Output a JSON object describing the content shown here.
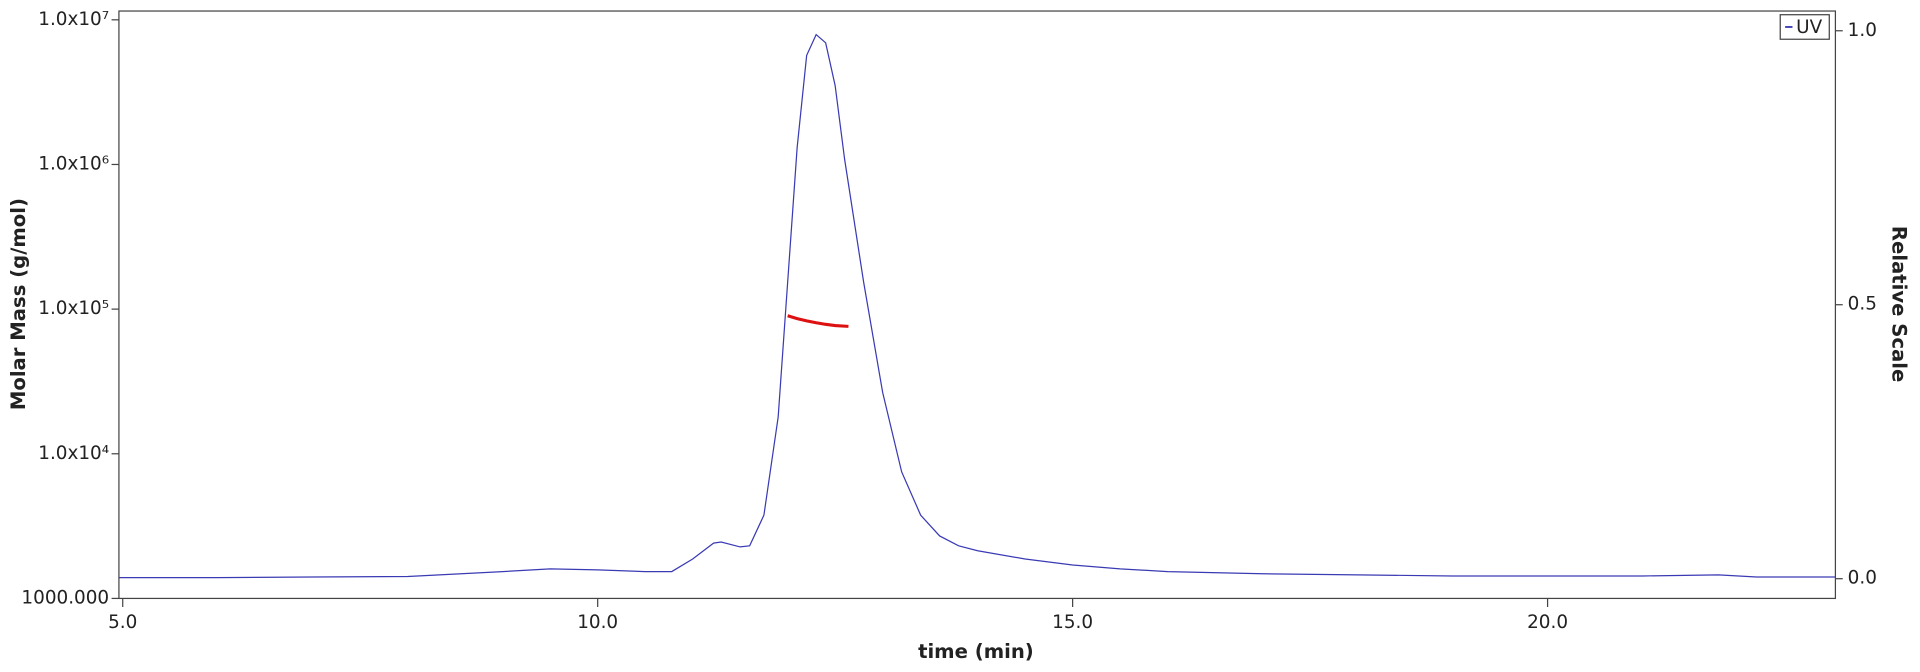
{
  "chart_data": {
    "type": "line",
    "xlabel": "time (min)",
    "ylabel": "Molar Mass (g/mol)",
    "y2label": "Relative Scale",
    "xlim": [
      4.96,
      23.03
    ],
    "xticks": [
      {
        "value": 5,
        "label": "5.0"
      },
      {
        "value": 10,
        "label": "10.0"
      },
      {
        "value": 15,
        "label": "15.0"
      },
      {
        "value": 20,
        "label": "20.0"
      }
    ],
    "ylog": true,
    "ylim": [
      1000,
      11500000
    ],
    "yticks": [
      {
        "value": 1000,
        "label": "1000.000"
      },
      {
        "value": 10000,
        "label": "1.0x10⁴"
      },
      {
        "value": 100000,
        "label": "1.0x10⁵"
      },
      {
        "value": 1000000,
        "label": "1.0x10⁶"
      },
      {
        "value": 10000000,
        "label": "1.0x10⁷"
      }
    ],
    "y2lim": [
      -0.036,
      1.036
    ],
    "y2ticks": [
      {
        "value": 0,
        "label": "0.0"
      },
      {
        "value": 0.5,
        "label": "0.5"
      },
      {
        "value": 1,
        "label": "1.0"
      }
    ],
    "legend": "top-right",
    "series": [
      {
        "name": "UV",
        "color": "#3a3ab4",
        "axis": "y2",
        "x": [
          4.96,
          6,
          7,
          8,
          9,
          9.5,
          10,
          10.5,
          10.78,
          11,
          11.22,
          11.3,
          11.5,
          11.6,
          11.75,
          11.9,
          12,
          12.1,
          12.2,
          12.3,
          12.4,
          12.5,
          12.6,
          12.8,
          13,
          13.2,
          13.4,
          13.6,
          13.8,
          14,
          14.5,
          15,
          15.5,
          16,
          17,
          18,
          19,
          20,
          21,
          21.8,
          22.2,
          23.03
        ],
        "values": [
          0.002,
          0.002,
          0.003,
          0.004,
          0.013,
          0.018,
          0.016,
          0.013,
          0.013,
          0.036,
          0.065,
          0.067,
          0.058,
          0.06,
          0.116,
          0.295,
          0.541,
          0.787,
          0.955,
          0.993,
          0.978,
          0.9,
          0.765,
          0.541,
          0.34,
          0.195,
          0.116,
          0.078,
          0.06,
          0.051,
          0.036,
          0.025,
          0.018,
          0.013,
          0.009,
          0.007,
          0.005,
          0.005,
          0.005,
          0.007,
          0.003,
          0.003
        ]
      },
      {
        "color": "#dd1111",
        "axis": "y",
        "x": [
          12.0,
          12.1,
          12.2,
          12.3,
          12.4,
          12.5,
          12.64
        ],
        "values": [
          90000,
          86000,
          83000,
          80500,
          78500,
          77000,
          76000
        ]
      }
    ]
  }
}
